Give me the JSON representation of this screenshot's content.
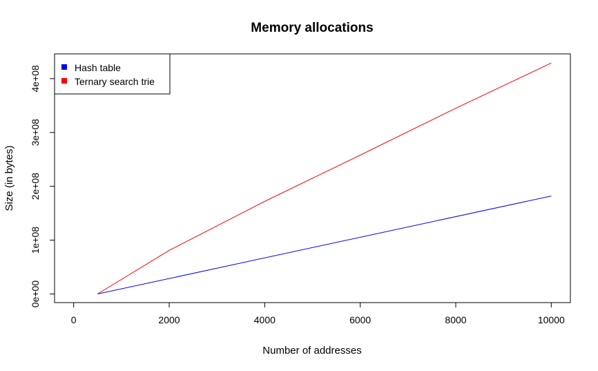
{
  "chart_data": {
    "type": "line",
    "title": "Memory allocations",
    "xlabel": "Number of addresses",
    "ylabel": "Size (in bytes)",
    "xlim": [
      -400,
      10400
    ],
    "ylim": [
      -16000000,
      446000000
    ],
    "x_ticks": [
      0,
      2000,
      4000,
      6000,
      8000,
      10000
    ],
    "x_tick_labels": [
      "0",
      "2000",
      "4000",
      "6000",
      "8000",
      "10000"
    ],
    "y_ticks": [
      0,
      100000000,
      200000000,
      300000000,
      400000000
    ],
    "y_tick_labels": [
      "0e+00",
      "1e+08",
      "2e+08",
      "3e+08",
      "4e+08"
    ],
    "grid": false,
    "legend_position": "top-left",
    "series": [
      {
        "name": "Hash table",
        "color": "#0000ff",
        "x": [
          500,
          10000
        ],
        "y": [
          0,
          182000000
        ]
      },
      {
        "name": "Ternary search trie",
        "color": "#ff0000",
        "x": [
          500,
          2000,
          4000,
          6000,
          8000,
          10000
        ],
        "y": [
          0,
          81000000,
          172000000,
          258000000,
          345000000,
          429000000
        ]
      }
    ]
  }
}
